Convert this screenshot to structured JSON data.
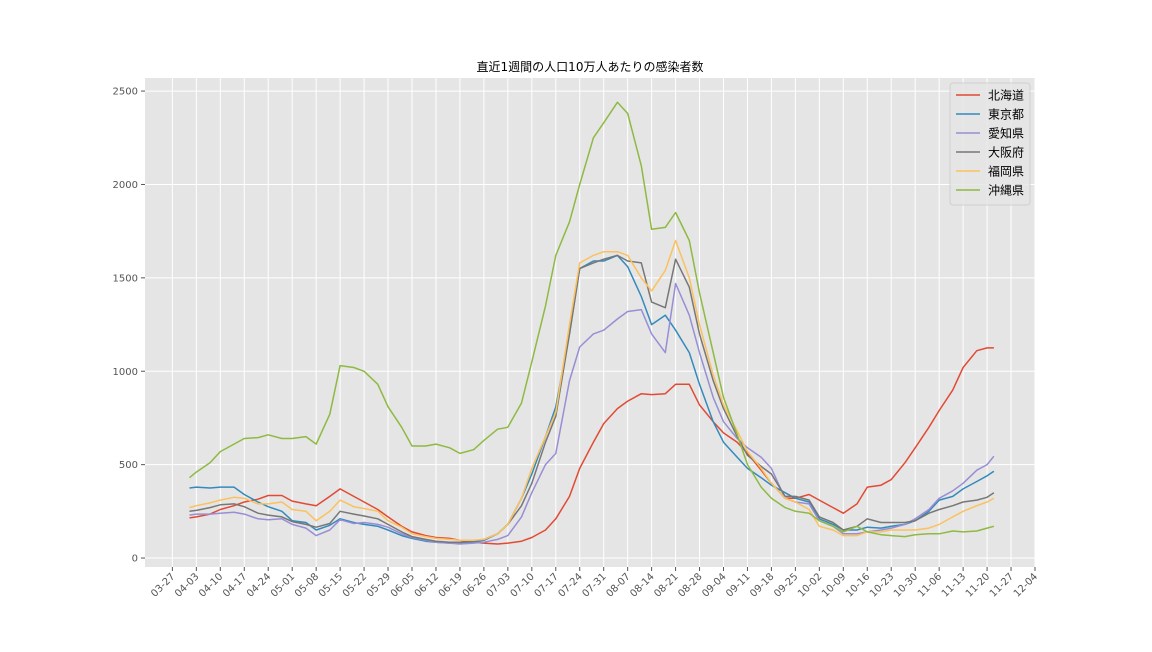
{
  "chart_data": {
    "type": "line",
    "title": "直近1週間の人口10万人あたりの感染者数",
    "x": [
      "04-01",
      "04-03",
      "04-07",
      "04-10",
      "04-14",
      "04-17",
      "04-21",
      "04-24",
      "04-28",
      "05-01",
      "05-05",
      "05-08",
      "05-12",
      "05-15",
      "05-19",
      "05-22",
      "05-26",
      "05-29",
      "06-02",
      "06-05",
      "06-09",
      "06-12",
      "06-16",
      "06-19",
      "06-23",
      "06-26",
      "06-30",
      "07-03",
      "07-07",
      "07-10",
      "07-14",
      "07-17",
      "07-21",
      "07-24",
      "07-28",
      "07-31",
      "08-04",
      "08-07",
      "08-11",
      "08-14",
      "08-18",
      "08-21",
      "08-25",
      "08-28",
      "09-01",
      "09-04",
      "09-08",
      "09-11",
      "09-15",
      "09-18",
      "09-22",
      "09-25",
      "09-29",
      "10-02",
      "10-06",
      "10-09",
      "10-13",
      "10-16",
      "10-20",
      "10-23",
      "10-27",
      "10-30",
      "11-03",
      "11-06",
      "11-10",
      "11-13",
      "11-17",
      "11-20",
      "11-22"
    ],
    "series": [
      {
        "name": "北海道",
        "color": "#e24a33",
        "values": [
          215,
          220,
          235,
          260,
          280,
          300,
          315,
          335,
          335,
          305,
          290,
          280,
          330,
          370,
          330,
          300,
          260,
          220,
          170,
          140,
          120,
          110,
          105,
          95,
          85,
          80,
          75,
          80,
          90,
          110,
          150,
          210,
          330,
          480,
          620,
          720,
          800,
          840,
          880,
          875,
          880,
          930,
          930,
          820,
          730,
          670,
          620,
          560,
          470,
          400,
          320,
          320,
          340,
          310,
          270,
          240,
          290,
          380,
          390,
          420,
          510,
          590,
          700,
          790,
          900,
          1020,
          1110,
          1125,
          1125
        ]
      },
      {
        "name": "東京都",
        "color": "#348abd",
        "values": [
          375,
          380,
          375,
          380,
          380,
          340,
          300,
          275,
          250,
          200,
          190,
          150,
          175,
          210,
          190,
          180,
          170,
          150,
          120,
          105,
          90,
          85,
          80,
          80,
          85,
          95,
          130,
          180,
          320,
          450,
          650,
          810,
          1200,
          1550,
          1590,
          1590,
          1620,
          1560,
          1400,
          1250,
          1300,
          1220,
          1100,
          930,
          730,
          620,
          540,
          480,
          430,
          390,
          350,
          320,
          300,
          210,
          180,
          150,
          150,
          165,
          160,
          170,
          180,
          200,
          250,
          310,
          330,
          370,
          410,
          440,
          465
        ]
      },
      {
        "name": "愛知県",
        "color": "#988ed5",
        "values": [
          230,
          235,
          235,
          240,
          245,
          235,
          210,
          205,
          210,
          180,
          160,
          120,
          150,
          205,
          185,
          190,
          180,
          165,
          130,
          110,
          95,
          85,
          80,
          75,
          80,
          85,
          100,
          120,
          220,
          350,
          500,
          560,
          950,
          1130,
          1200,
          1220,
          1280,
          1320,
          1330,
          1200,
          1100,
          1470,
          1300,
          1100,
          860,
          730,
          640,
          590,
          540,
          480,
          320,
          300,
          290,
          200,
          170,
          130,
          130,
          140,
          150,
          160,
          180,
          210,
          260,
          320,
          360,
          400,
          470,
          500,
          545
        ]
      },
      {
        "name": "大阪府",
        "color": "#777777",
        "values": [
          250,
          255,
          270,
          285,
          290,
          275,
          240,
          230,
          220,
          195,
          180,
          165,
          185,
          250,
          235,
          225,
          210,
          180,
          140,
          115,
          100,
          90,
          85,
          85,
          90,
          100,
          130,
          180,
          280,
          400,
          620,
          760,
          1200,
          1550,
          1580,
          1600,
          1620,
          1590,
          1580,
          1370,
          1340,
          1600,
          1450,
          1200,
          950,
          800,
          650,
          550,
          490,
          450,
          330,
          330,
          310,
          220,
          190,
          150,
          170,
          210,
          190,
          190,
          190,
          200,
          240,
          260,
          280,
          300,
          310,
          325,
          350
        ]
      },
      {
        "name": "福岡県",
        "color": "#fbc15e",
        "values": [
          270,
          280,
          295,
          310,
          325,
          320,
          290,
          290,
          300,
          260,
          250,
          200,
          250,
          310,
          275,
          265,
          250,
          200,
          165,
          130,
          115,
          105,
          100,
          95,
          95,
          100,
          130,
          180,
          320,
          480,
          650,
          780,
          1250,
          1580,
          1620,
          1640,
          1640,
          1620,
          1500,
          1430,
          1540,
          1700,
          1500,
          1250,
          980,
          820,
          680,
          570,
          480,
          400,
          320,
          300,
          260,
          170,
          150,
          120,
          120,
          140,
          140,
          150,
          150,
          150,
          160,
          180,
          220,
          250,
          280,
          300,
          320
        ]
      },
      {
        "name": "沖縄県",
        "color": "#8eba42",
        "values": [
          430,
          460,
          510,
          570,
          610,
          640,
          645,
          660,
          640,
          640,
          650,
          610,
          770,
          1030,
          1020,
          1000,
          930,
          810,
          700,
          600,
          600,
          610,
          590,
          560,
          580,
          630,
          690,
          700,
          830,
          1050,
          1350,
          1620,
          1800,
          2000,
          2250,
          2330,
          2440,
          2380,
          2100,
          1760,
          1770,
          1850,
          1700,
          1420,
          1100,
          860,
          660,
          500,
          380,
          320,
          270,
          250,
          240,
          200,
          170,
          140,
          170,
          140,
          125,
          120,
          115,
          125,
          130,
          130,
          145,
          140,
          145,
          160,
          170
        ]
      }
    ],
    "xlim": [
      "03-19",
      "12-04"
    ],
    "xticks": [
      "03-27",
      "04-03",
      "04-10",
      "04-17",
      "04-24",
      "05-01",
      "05-08",
      "05-15",
      "05-22",
      "05-29",
      "06-05",
      "06-12",
      "06-19",
      "06-26",
      "07-03",
      "07-10",
      "07-17",
      "07-24",
      "07-31",
      "08-07",
      "08-14",
      "08-21",
      "08-28",
      "09-04",
      "09-11",
      "09-18",
      "09-25",
      "10-02",
      "10-09",
      "10-16",
      "10-23",
      "10-30",
      "11-06",
      "11-13",
      "11-20",
      "11-27",
      "12-04"
    ],
    "ylim": [
      -48,
      2570
    ],
    "yticks": [
      0,
      500,
      1000,
      1500,
      2000,
      2500
    ],
    "grid": true,
    "legend": "upper right"
  }
}
